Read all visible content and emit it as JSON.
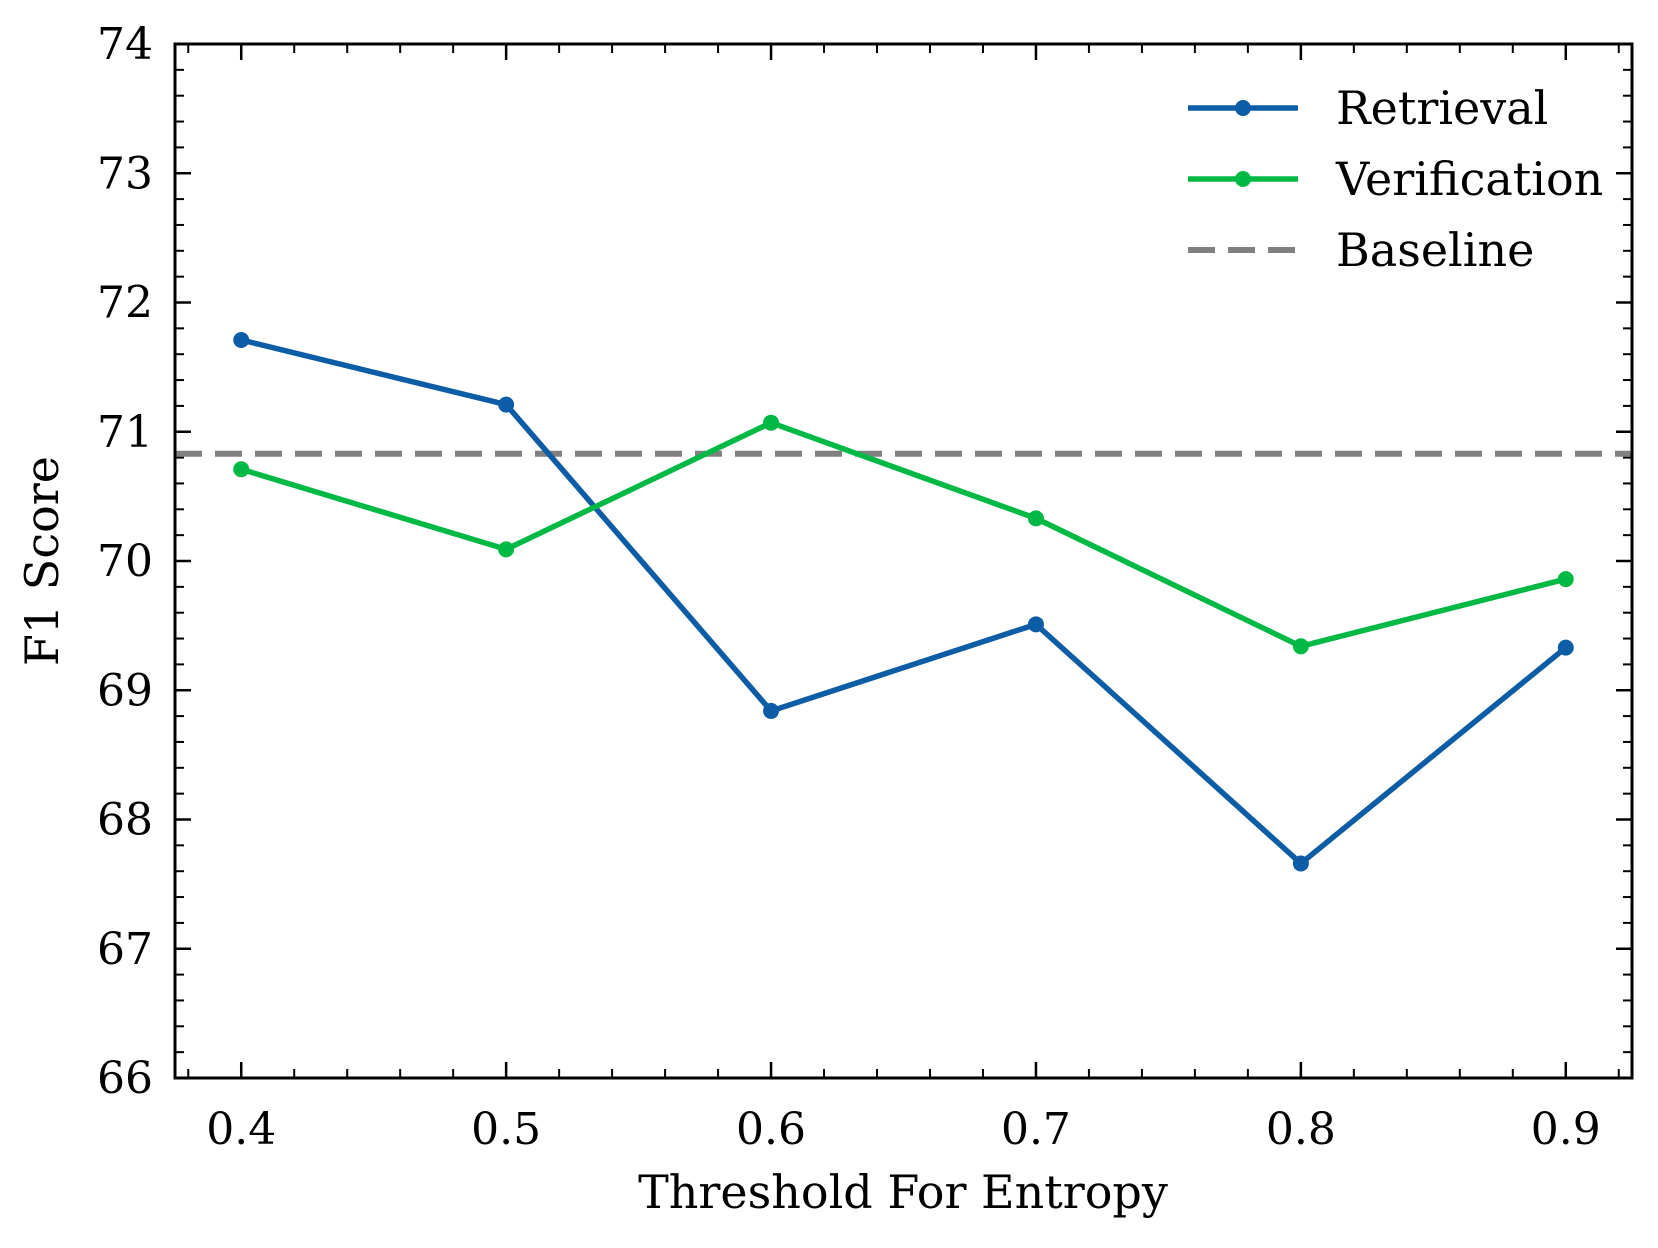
{
  "chart_data": {
    "type": "line",
    "title": "",
    "xlabel": "Threshold For Entropy",
    "ylabel": "F1 Score",
    "x": [
      0.4,
      0.5,
      0.6,
      0.7,
      0.8,
      0.9
    ],
    "x_tick_labels": [
      "0.4",
      "0.5",
      "0.6",
      "0.7",
      "0.8",
      "0.9"
    ],
    "y_tick_labels": [
      "66",
      "67",
      "68",
      "69",
      "70",
      "71",
      "72",
      "73",
      "74"
    ],
    "xlim": [
      0.375,
      0.925
    ],
    "ylim": [
      66,
      74
    ],
    "series": [
      {
        "name": "Retrieval",
        "color": "#0C5DA5",
        "style": "solid",
        "marker": "circle",
        "values": [
          71.71,
          71.21,
          68.84,
          69.51,
          67.66,
          69.33
        ]
      },
      {
        "name": "Verification",
        "color": "#00B945",
        "style": "solid",
        "marker": "circle",
        "values": [
          70.71,
          70.09,
          71.07,
          70.33,
          69.34,
          69.86
        ]
      }
    ],
    "baseline": {
      "name": "Baseline",
      "color": "#808080",
      "style": "dashed",
      "value": 70.83
    },
    "legend": {
      "position": "top-right",
      "entries": [
        "Retrieval",
        "Verification",
        "Baseline"
      ]
    },
    "grid": false
  }
}
